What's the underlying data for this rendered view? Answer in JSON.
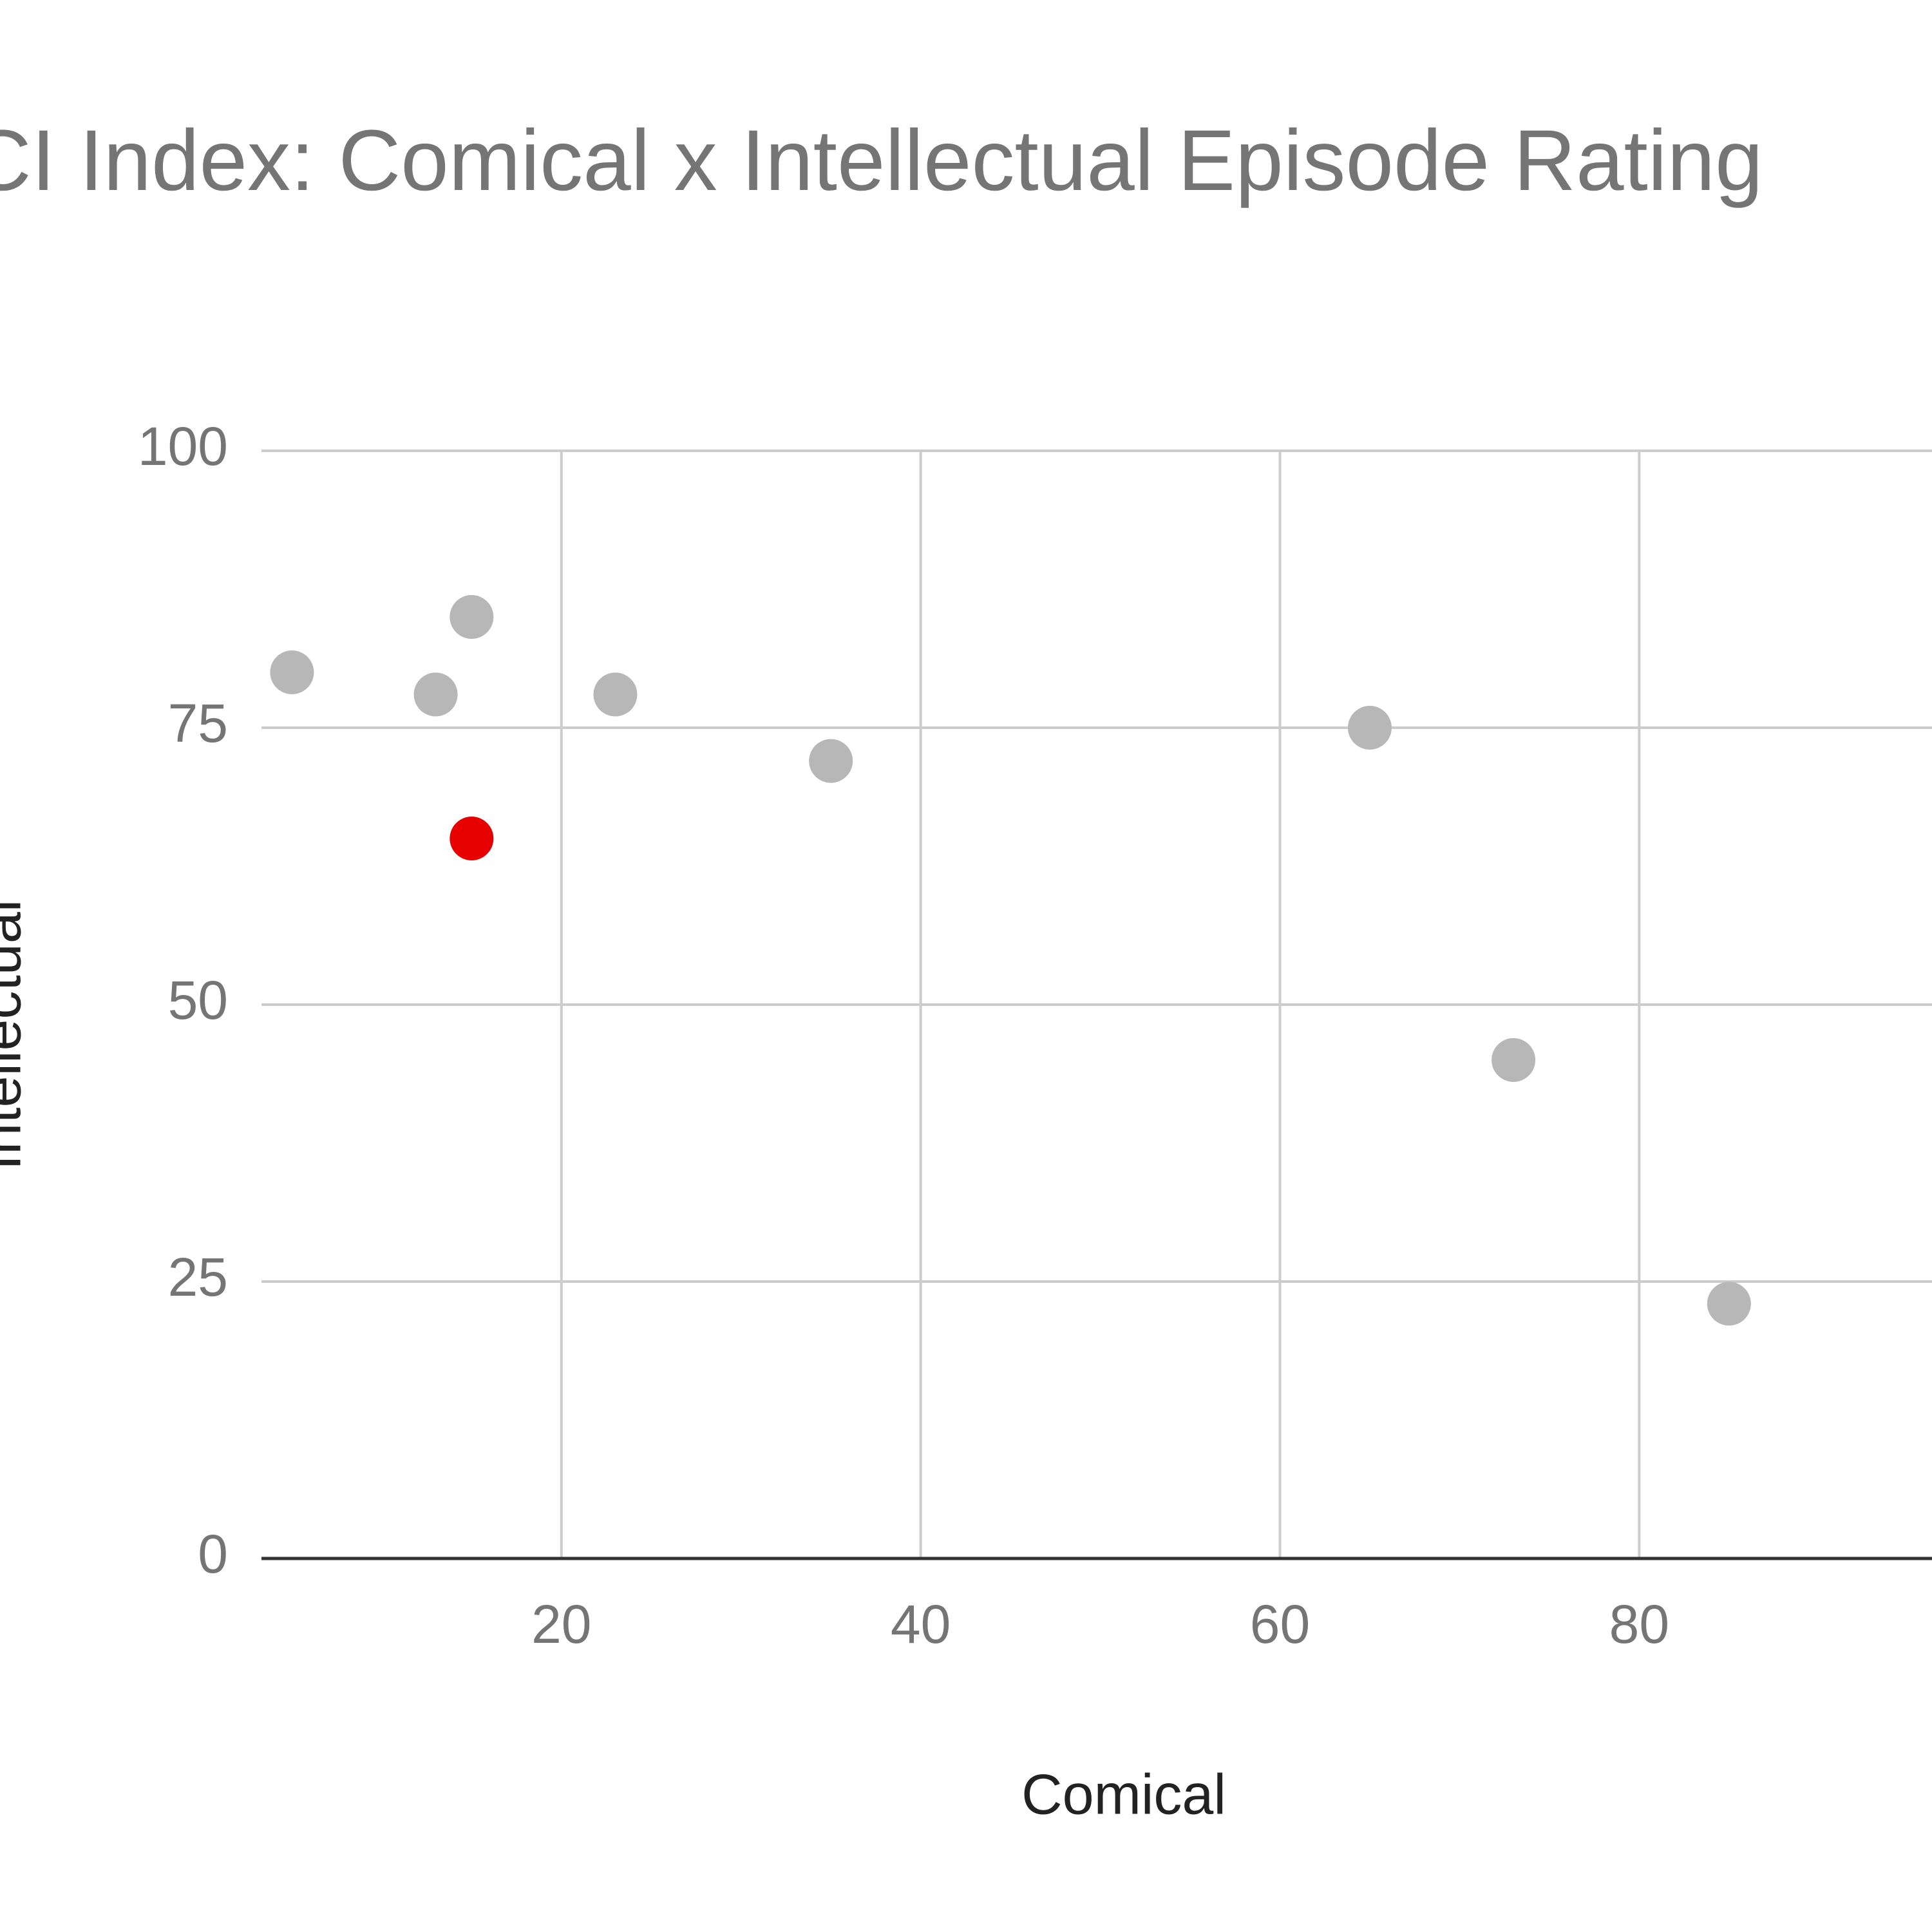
{
  "chart_data": {
    "type": "scatter",
    "title": "CI Index: Comical x Intellectual Episode Rating",
    "x_label": "Comical",
    "y_label": "Intellectual",
    "x": [
      5,
      15,
      13,
      23,
      35,
      65,
      15,
      73,
      85
    ],
    "values": [
      80,
      85,
      78,
      78,
      72,
      75,
      65,
      45,
      23
    ],
    "colors": [
      "#b7b7b7",
      "#b7b7b7",
      "#b7b7b7",
      "#b7b7b7",
      "#b7b7b7",
      "#b7b7b7",
      "#e60000",
      "#b7b7b7",
      "#b7b7b7"
    ],
    "xlim": [
      3.3,
      96.3
    ],
    "xticks": [
      20,
      40,
      60,
      80
    ],
    "ylim": [
      0,
      100
    ],
    "yticks": [
      0,
      25,
      50,
      75,
      100
    ],
    "grid": true
  }
}
